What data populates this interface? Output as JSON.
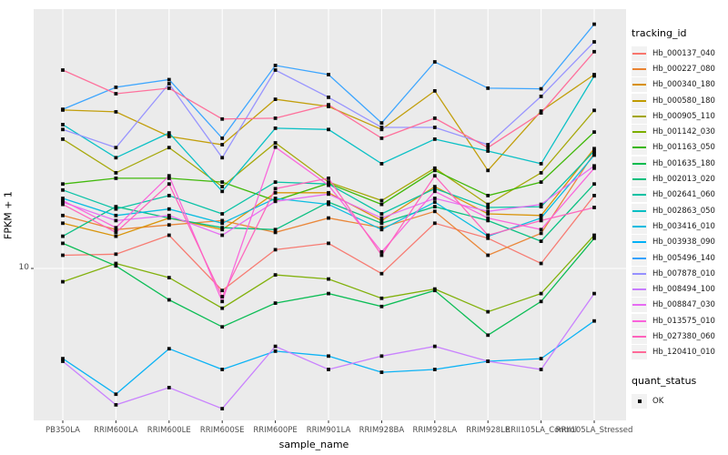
{
  "chart_data": {
    "type": "line",
    "xlabel": "sample_name",
    "ylabel": "FPKM + 1",
    "y_scale": "log10",
    "y_tick_label": "10",
    "y_tick_value": 10,
    "grid": "major-white-on-gray",
    "legend_position": "right",
    "style": {
      "panel_bg": "#EBEBEB",
      "grid_color": "#FFFFFF",
      "point_color": "#0A0A0A",
      "tick_color": "#333333",
      "axis_text_color": "#4D4D4D"
    },
    "categories": [
      "PB350LA",
      "RRIM600LA",
      "RRIM600LE",
      "RRIM600SE",
      "RRIM600PE",
      "RRIM901LA",
      "RRIM928BA",
      "RRIM928LA",
      "RRIM928LE",
      "RRII105LA_Control",
      "RRII105LA_Stressed"
    ],
    "legend": {
      "tracking_title": "tracking_id",
      "quant_title": "quant_status",
      "quant_items": [
        {
          "label": "OK",
          "marker": "black-square"
        }
      ]
    },
    "series": [
      {
        "id": "Hb_000137_040",
        "color": "#F8766D",
        "values": [
          11.1,
          11.2,
          13.0,
          8.4,
          11.6,
          12.2,
          9.6,
          14.3,
          12.7,
          10.4,
          17.8
        ]
      },
      {
        "id": "Hb_000227_080",
        "color": "#EA8331",
        "values": [
          15.2,
          13.6,
          14.1,
          14.6,
          13.3,
          14.9,
          13.8,
          15.7,
          11.1,
          13.2,
          24.9
        ]
      },
      {
        "id": "Hb_000340_180",
        "color": "#D89000",
        "values": [
          14.3,
          12.9,
          14.9,
          13.6,
          18.2,
          18.2,
          14.6,
          19.1,
          15.4,
          15.2,
          25.8
        ]
      },
      {
        "id": "Hb_000580_180",
        "color": "#C09B00",
        "values": [
          35.0,
          34.5,
          28.4,
          26.6,
          38.1,
          36.0,
          30.0,
          40.7,
          21.7,
          34.7,
          46.3
        ]
      },
      {
        "id": "Hb_000905_110",
        "color": "#A3A500",
        "values": [
          27.8,
          21.3,
          26.0,
          19.1,
          27.0,
          19.8,
          17.1,
          22.1,
          16.6,
          21.3,
          34.9
        ]
      },
      {
        "id": "Hb_001142_030",
        "color": "#7CAE00",
        "values": [
          9.0,
          10.4,
          9.3,
          7.3,
          9.5,
          9.2,
          7.9,
          8.5,
          7.1,
          8.2,
          13.0
        ]
      },
      {
        "id": "Hb_001163_050",
        "color": "#39B600",
        "values": [
          19.5,
          20.4,
          20.4,
          19.8,
          17.1,
          19.6,
          16.6,
          21.7,
          17.8,
          19.8,
          29.4
        ]
      },
      {
        "id": "Hb_001635_180",
        "color": "#00BB4E",
        "values": [
          12.2,
          10.2,
          7.8,
          6.3,
          7.6,
          8.2,
          7.4,
          8.4,
          5.9,
          7.7,
          12.7
        ]
      },
      {
        "id": "Hb_002013_020",
        "color": "#00BF7D",
        "values": [
          12.9,
          16.3,
          14.9,
          13.8,
          13.6,
          16.9,
          14.3,
          16.3,
          14.6,
          12.4,
          19.5
        ]
      },
      {
        "id": "Hb_002641_060",
        "color": "#00C1A3",
        "values": [
          18.6,
          16.0,
          17.8,
          15.4,
          19.8,
          19.5,
          15.4,
          18.8,
          16.2,
          16.3,
          25.3
        ]
      },
      {
        "id": "Hb_002863_050",
        "color": "#00BFC4",
        "values": [
          31.2,
          24.0,
          29.2,
          18.4,
          30.3,
          30.0,
          22.9,
          27.8,
          25.3,
          22.9,
          45.8
        ]
      },
      {
        "id": "Hb_003416_010",
        "color": "#00BAE0",
        "values": [
          17.4,
          15.2,
          16.0,
          14.3,
          17.4,
          16.6,
          13.6,
          16.9,
          12.9,
          14.9,
          24.5
        ]
      },
      {
        "id": "Hb_003938_090",
        "color": "#00B0F6",
        "values": [
          4.9,
          3.7,
          5.3,
          4.5,
          5.2,
          5.0,
          4.4,
          4.5,
          4.8,
          4.9,
          6.6
        ]
      },
      {
        "id": "Hb_005496_140",
        "color": "#35A2FF",
        "values": [
          35.2,
          41.9,
          44.5,
          28.0,
          49.8,
          46.3,
          31.6,
          51.2,
          41.6,
          41.4,
          69.0
        ]
      },
      {
        "id": "Hb_007878_010",
        "color": "#9590FF",
        "values": [
          30.0,
          26.0,
          43.1,
          24.0,
          48.0,
          38.7,
          30.5,
          30.5,
          26.6,
          39.0,
          60.0
        ]
      },
      {
        "id": "Hb_008494_100",
        "color": "#C77CFF",
        "values": [
          4.8,
          3.4,
          3.9,
          3.3,
          5.4,
          4.5,
          5.0,
          5.4,
          4.8,
          4.5,
          8.2
        ]
      },
      {
        "id": "Hb_008847_030",
        "color": "#E76BF3",
        "values": [
          16.9,
          14.6,
          15.2,
          13.0,
          17.0,
          18.0,
          14.9,
          17.4,
          15.7,
          16.6,
          22.5
        ]
      },
      {
        "id": "Hb_013575_010",
        "color": "#FA62DB",
        "values": [
          17.1,
          13.8,
          20.8,
          7.7,
          26.1,
          19.3,
          11.4,
          18.4,
          14.9,
          13.6,
          22.1
        ]
      },
      {
        "id": "Hb_027380_060",
        "color": "#FF62BC",
        "values": [
          16.6,
          13.3,
          19.5,
          8.0,
          18.8,
          20.4,
          11.1,
          20.8,
          13.0,
          14.6,
          16.2
        ]
      },
      {
        "id": "Hb_120410_010",
        "color": "#FF6A98",
        "values": [
          48.0,
          39.8,
          41.6,
          32.6,
          32.8,
          36.5,
          28.0,
          32.8,
          26.0,
          34.2,
          55.5
        ]
      }
    ]
  }
}
